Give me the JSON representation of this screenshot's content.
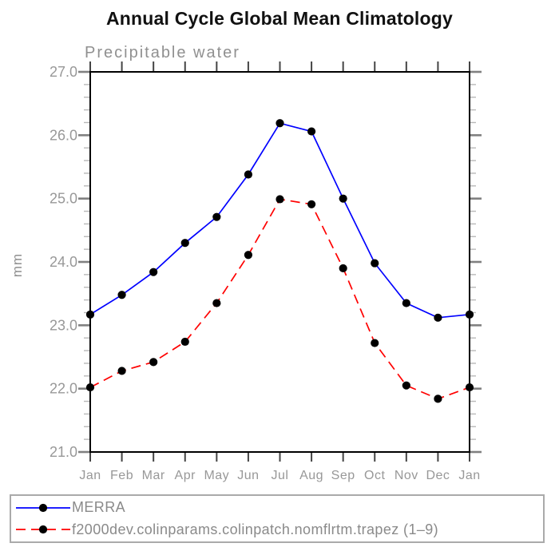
{
  "title": "Annual Cycle Global Mean Climatology",
  "chart_data": {
    "type": "line",
    "subtitle": "Precipitable water",
    "ylabel": "mm",
    "x_categories": [
      "Jan",
      "Feb",
      "Mar",
      "Apr",
      "May",
      "Jun",
      "Jul",
      "Aug",
      "Sep",
      "Oct",
      "Nov",
      "Dec",
      "Jan"
    ],
    "ylim": [
      21.0,
      27.0
    ],
    "y_major_step": 1.0,
    "y_minor_step": 0.2,
    "y_tick_labels": [
      "21.0",
      "22.0",
      "23.0",
      "24.0",
      "25.0",
      "26.0",
      "27.0"
    ],
    "grid": false,
    "legend_position": "bottom",
    "series": [
      {
        "name": "MERRA",
        "color": "#0000ff",
        "style": "solid",
        "marker": "circle",
        "marker_color": "#000000",
        "values": [
          23.17,
          23.48,
          23.84,
          24.3,
          24.71,
          25.38,
          26.19,
          26.06,
          25.0,
          23.98,
          23.35,
          23.12,
          23.17
        ]
      },
      {
        "name": "f2000dev.colinparams.colinpatch.nomflrtm.trapez (1–9)",
        "color": "#ff0000",
        "style": "dashed",
        "marker": "circle",
        "marker_color": "#000000",
        "values": [
          22.02,
          22.28,
          22.42,
          22.74,
          23.35,
          24.11,
          24.99,
          24.91,
          23.9,
          22.72,
          22.05,
          21.84,
          22.02
        ]
      }
    ]
  },
  "colors": {
    "axis": "#000000",
    "major_tick": "#808080",
    "minor_tick": "#b8b8b8",
    "label_gray": "#909090",
    "legend_border": "#aaaaaa"
  }
}
